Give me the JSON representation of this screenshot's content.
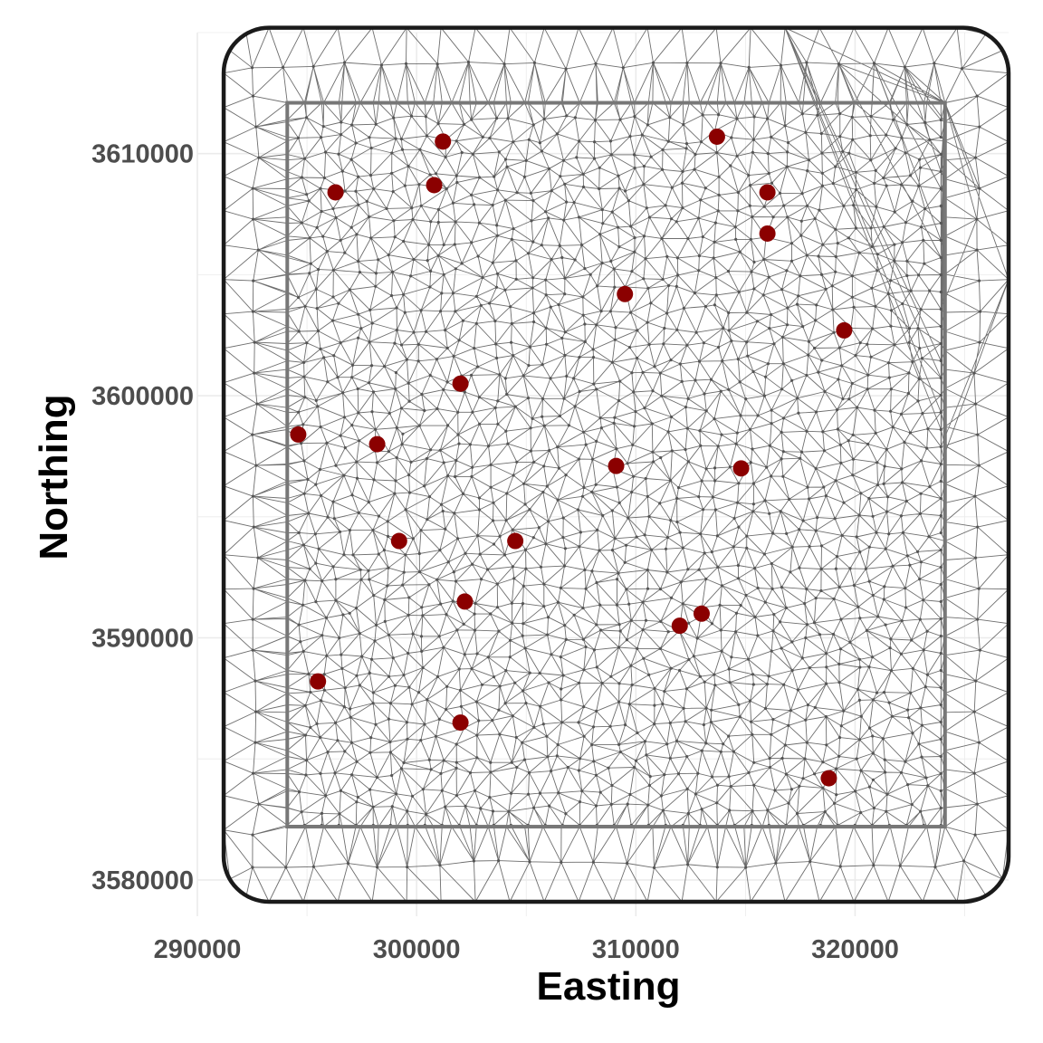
{
  "chart_data": {
    "type": "scatter",
    "xlabel": "Easting",
    "ylabel": "Northing",
    "xlim": [
      290000,
      327000
    ],
    "ylim": [
      3578500,
      3615000
    ],
    "x_ticks": [
      290000,
      300000,
      310000,
      320000
    ],
    "y_ticks": [
      3580000,
      3590000,
      3600000,
      3610000
    ],
    "x_tick_labels": [
      "290000",
      "300000",
      "310000",
      "320000"
    ],
    "y_tick_labels": [
      "3580000",
      "3590000",
      "3600000",
      "3610000"
    ],
    "grid": true,
    "legend": "none",
    "mesh": {
      "inner_boundary": {
        "x": [
          294100,
          324100
        ],
        "y": [
          3582200,
          3612100
        ]
      },
      "outer_boundary": {
        "x": [
          291200,
          327000
        ],
        "y": [
          3579100,
          3615200
        ]
      },
      "color": "#555555"
    },
    "point_color": "#8b0000",
    "series": [
      {
        "x": [
          301200,
          296300,
          300800,
          313700,
          316000,
          316000,
          309500,
          319500,
          302000,
          294600,
          298200,
          309100,
          314800,
          299200,
          304500,
          302200,
          313000,
          312000,
          295500,
          302000,
          318800
        ],
        "y": [
          3610500,
          3608400,
          3608700,
          3610700,
          3608400,
          3606700,
          3604200,
          3602700,
          3600500,
          3598400,
          3598000,
          3597100,
          3597000,
          3594000,
          3594000,
          3591500,
          3591000,
          3590500,
          3588200,
          3586500,
          3584200
        ]
      }
    ]
  }
}
